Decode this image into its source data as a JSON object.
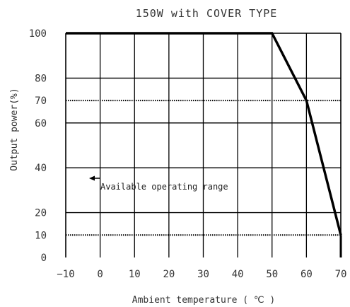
{
  "chart_data": {
    "type": "line",
    "title": "150W with COVER TYPE",
    "xlabel": "Ambient temperature ( ℃ )",
    "ylabel": "Output power(%)",
    "xlim": [
      -10,
      70
    ],
    "ylim": [
      0,
      100
    ],
    "x_ticks": [
      -10,
      0,
      10,
      20,
      30,
      40,
      50,
      60,
      70
    ],
    "x_tick_labels": [
      "−10",
      "0",
      "10",
      "20",
      "30",
      "40",
      "50",
      "60",
      "70"
    ],
    "y_ticks": [
      0,
      10,
      20,
      40,
      60,
      70,
      80,
      100
    ],
    "y_tick_labels": [
      "0",
      "10",
      "20",
      "40",
      "60",
      "70",
      "80",
      "100"
    ],
    "grid": true,
    "grid_solid_y": [
      20,
      40,
      60,
      80,
      100
    ],
    "grid_dotted_y": [
      10,
      70
    ],
    "series": [
      {
        "x": [
          -10,
          50,
          60,
          70
        ],
        "y": [
          100,
          100,
          70,
          10
        ],
        "color": "#000000"
      }
    ],
    "annotations": [
      {
        "text": "Available operating range",
        "arrow": "left"
      }
    ]
  }
}
